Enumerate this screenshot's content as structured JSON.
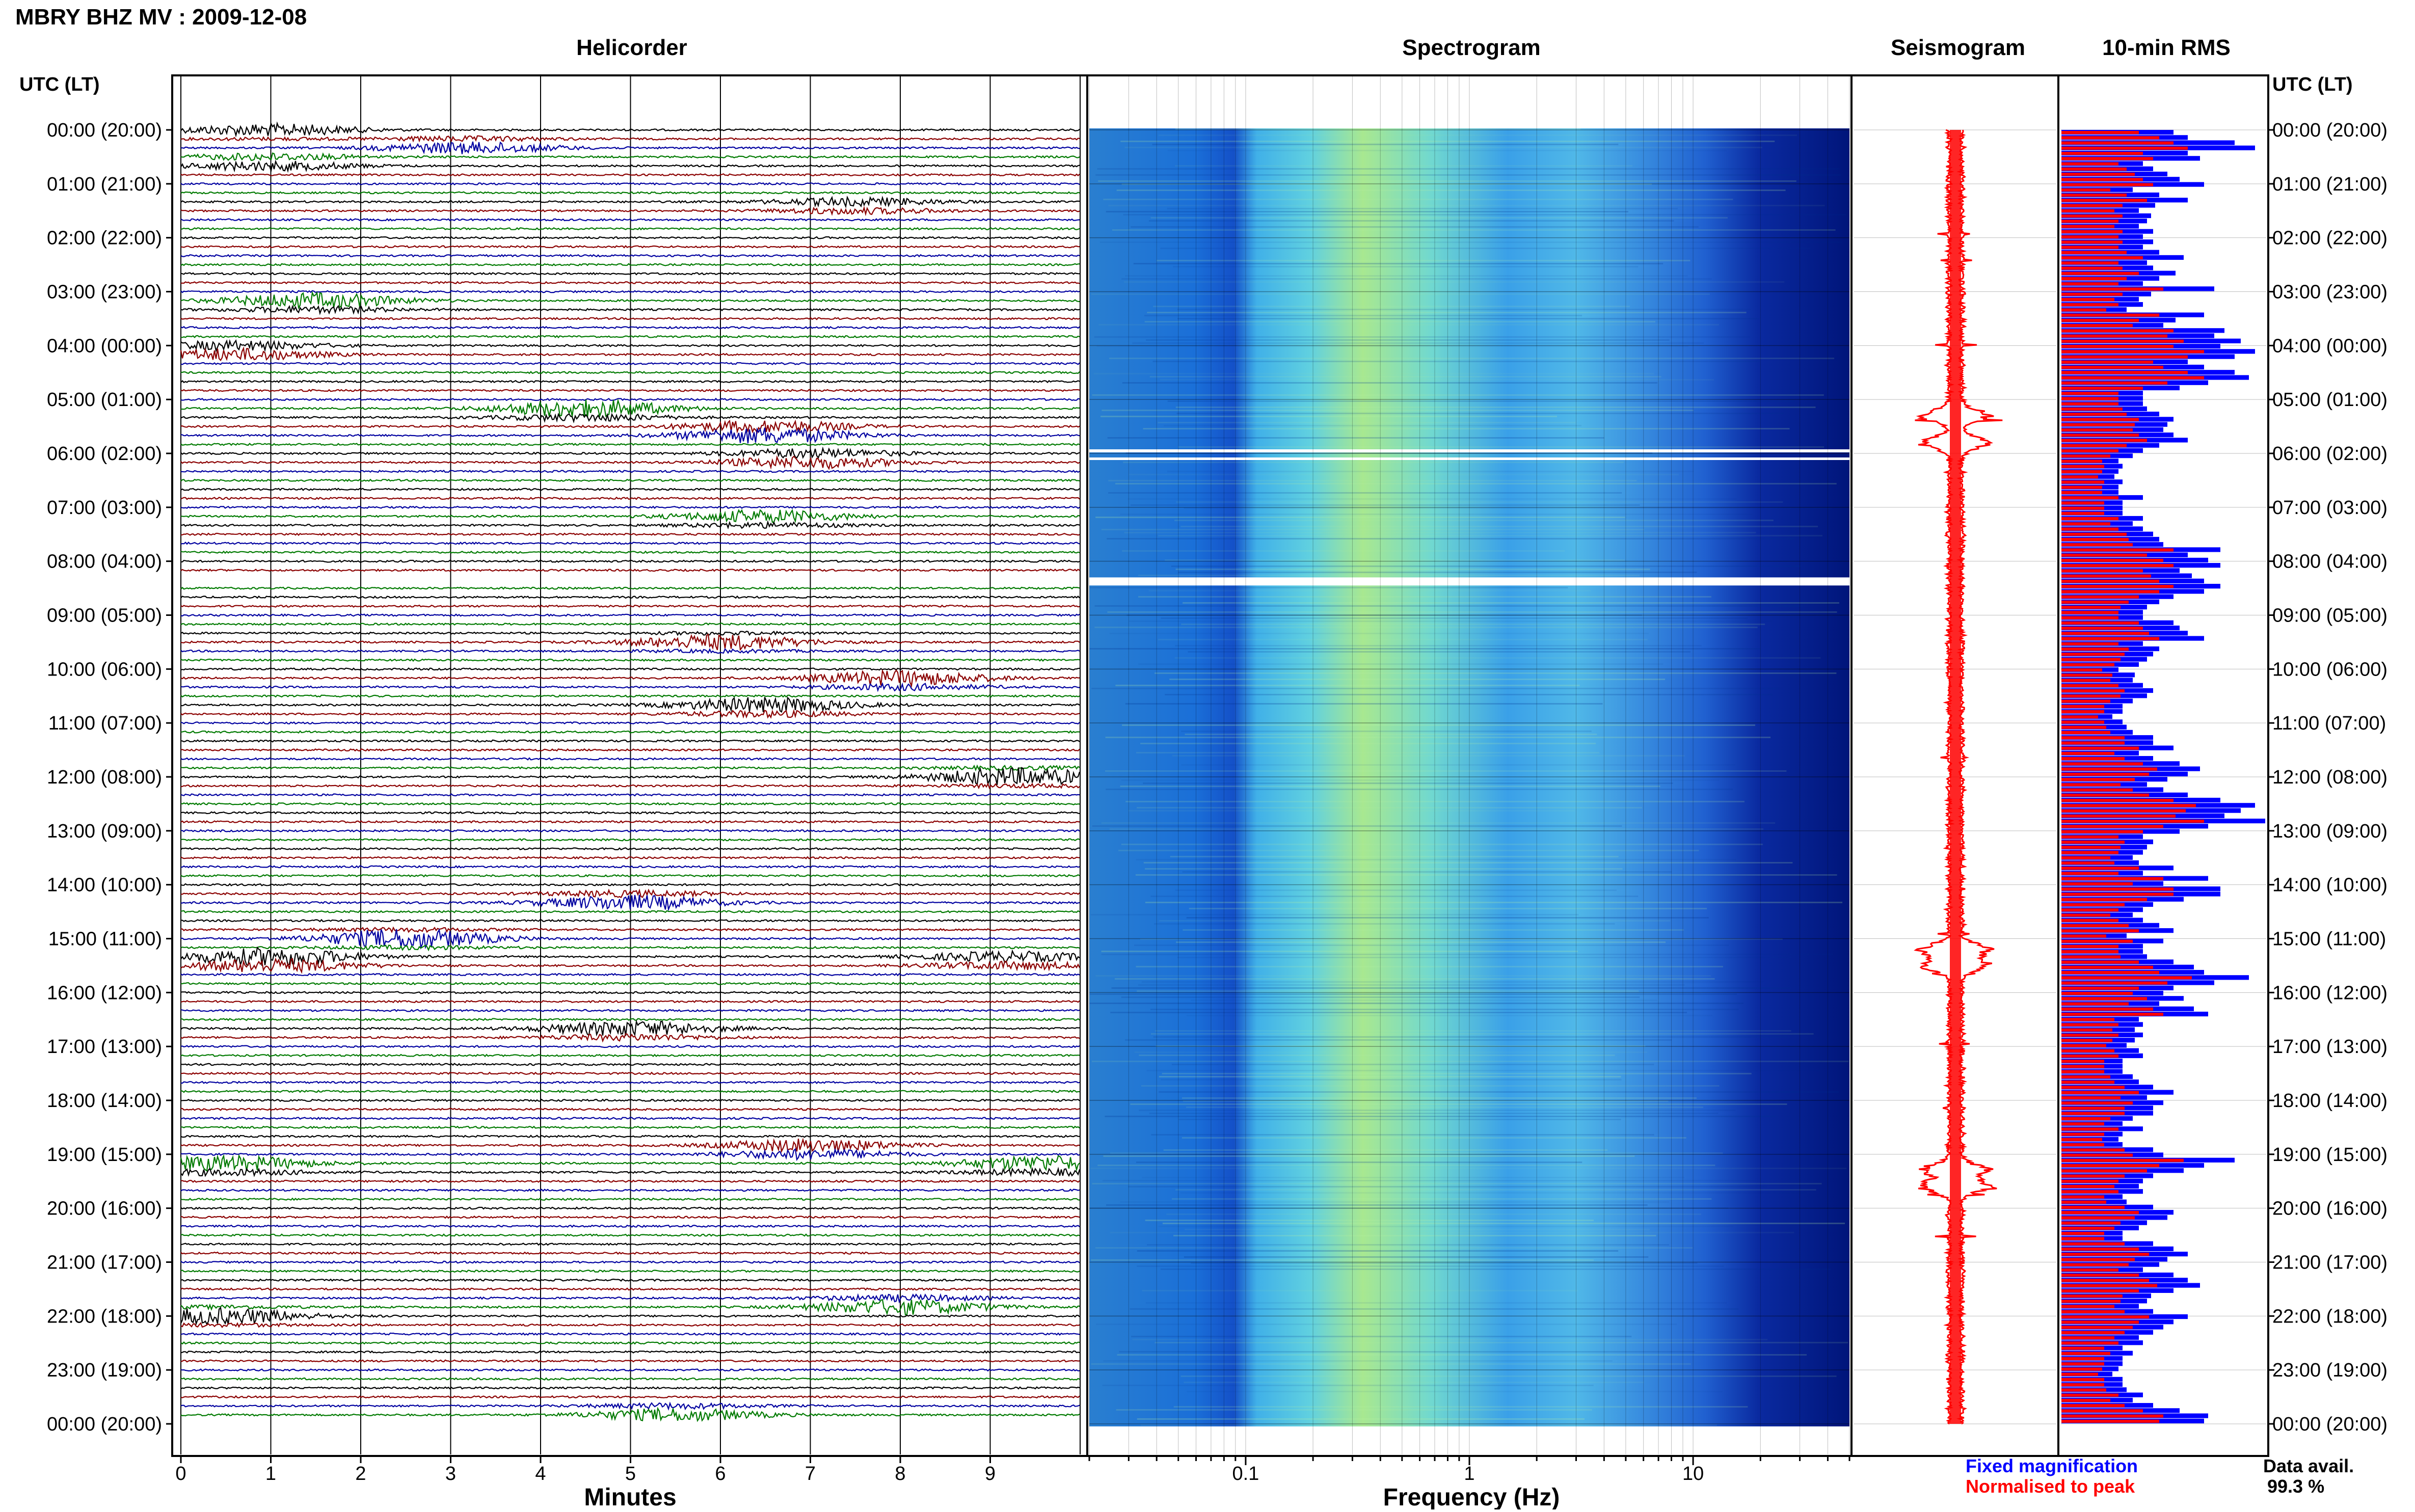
{
  "header": {
    "station_title": "MBRY BHZ MV : 2009-12-08"
  },
  "panels": {
    "helicorder_title": "Helicorder",
    "spectrogram_title": "Spectrogram",
    "seismogram_title": "Seismogram",
    "rms_title": "10-min RMS"
  },
  "time_axis": {
    "left_label": "UTC (LT)",
    "right_label": "UTC (LT)",
    "ticks": [
      "00:00 (20:00)",
      "01:00 (21:00)",
      "02:00 (22:00)",
      "03:00 (23:00)",
      "04:00 (00:00)",
      "05:00 (01:00)",
      "06:00 (02:00)",
      "07:00 (03:00)",
      "08:00 (04:00)",
      "09:00 (05:00)",
      "10:00 (06:00)",
      "11:00 (07:00)",
      "12:00 (08:00)",
      "13:00 (09:00)",
      "14:00 (10:00)",
      "15:00 (11:00)",
      "16:00 (12:00)",
      "17:00 (13:00)",
      "18:00 (14:00)",
      "19:00 (15:00)",
      "20:00 (16:00)",
      "21:00 (17:00)",
      "22:00 (18:00)",
      "23:00 (19:00)",
      "00:00 (20:00)"
    ]
  },
  "x_axes": {
    "helicorder_label": "Minutes",
    "helicorder_ticks": [
      "0",
      "1",
      "2",
      "3",
      "4",
      "5",
      "6",
      "7",
      "8",
      "9"
    ],
    "spectrogram_label": "Frequency (Hz)",
    "spectrogram_ticks": [
      "0.1",
      "1",
      "10"
    ]
  },
  "legend": {
    "fixed": "Fixed magnification",
    "normalised": "Normalised to peak",
    "avail_label": "Data avail.",
    "avail_value": "99.3 %"
  },
  "colors": {
    "helicorder_traces": [
      "#000000",
      "#8b0000",
      "#0000a0",
      "#007a00"
    ],
    "rms_fixed": "#0000ff",
    "rms_normalised": "#ff0000",
    "seismogram": "#ff0000"
  },
  "chart_data": [
    {
      "type": "line",
      "name": "helicorder",
      "xlabel": "Minutes",
      "xlim": [
        0,
        10
      ],
      "rows_per_hour": 6,
      "hours": 24,
      "events": [
        {
          "hour": 0.0,
          "minute": 1.0,
          "size": 0.8
        },
        {
          "hour": 0.3,
          "minute": 3.2,
          "size": 0.9
        },
        {
          "hour": 0.6,
          "minute": 1.0,
          "size": 0.9
        },
        {
          "hour": 1.4,
          "minute": 7.5,
          "size": 0.8
        },
        {
          "hour": 3.2,
          "minute": 1.5,
          "size": 1.2
        },
        {
          "hour": 4.1,
          "minute": 0.6,
          "size": 1.2
        },
        {
          "hour": 5.2,
          "minute": 4.5,
          "size": 1.4
        },
        {
          "hour": 5.6,
          "minute": 6.5,
          "size": 1.6
        },
        {
          "hour": 6.1,
          "minute": 7.0,
          "size": 1.2
        },
        {
          "hour": 7.2,
          "minute": 6.5,
          "size": 1.0
        },
        {
          "hour": 9.5,
          "minute": 6.0,
          "size": 1.0
        },
        {
          "hour": 10.2,
          "minute": 8.0,
          "size": 1.2
        },
        {
          "hour": 10.7,
          "minute": 6.5,
          "size": 1.2
        },
        {
          "hour": 12.0,
          "minute": 9.3,
          "size": 1.2
        },
        {
          "hour": 14.3,
          "minute": 5.0,
          "size": 1.2
        },
        {
          "hour": 15.0,
          "minute": 2.5,
          "size": 1.3
        },
        {
          "hour": 15.4,
          "minute": 1.0,
          "size": 1.8
        },
        {
          "hour": 15.4,
          "minute": 9.2,
          "size": 1.0
        },
        {
          "hour": 16.7,
          "minute": 5.0,
          "size": 1.2
        },
        {
          "hour": 18.9,
          "minute": 7.0,
          "size": 1.3
        },
        {
          "hour": 19.2,
          "minute": 0.5,
          "size": 1.2
        },
        {
          "hour": 19.2,
          "minute": 9.6,
          "size": 1.2
        },
        {
          "hour": 21.8,
          "minute": 8.0,
          "size": 1.2
        },
        {
          "hour": 22.0,
          "minute": 0.4,
          "size": 1.1
        },
        {
          "hour": 23.8,
          "minute": 5.5,
          "size": 1.0
        }
      ],
      "gap": {
        "hour_start": 8.25,
        "hour_end": 8.4
      }
    },
    {
      "type": "heatmap",
      "name": "spectrogram",
      "xlabel": "Frequency (Hz)",
      "xscale": "log",
      "xlim": [
        0.02,
        50
      ],
      "dominant_band_hz": [
        0.15,
        0.5
      ],
      "gap": {
        "hour_start": 8.3,
        "hour_end": 8.45
      }
    },
    {
      "type": "line",
      "name": "seismogram",
      "peaks_hours": [
        5.3,
        5.8,
        15.2,
        15.5,
        19.3,
        19.6
      ]
    },
    {
      "type": "bar",
      "name": "10-min RMS",
      "series": [
        {
          "name": "Fixed magnification",
          "values": [
            0.55,
            0.62,
            0.85,
            0.95,
            0.62,
            0.68,
            0.4,
            0.45,
            0.52,
            0.58,
            0.7,
            0.35,
            0.48,
            0.62,
            0.46,
            0.38,
            0.44,
            0.42,
            0.38,
            0.45,
            0.4,
            0.45,
            0.4,
            0.48,
            0.6,
            0.42,
            0.45,
            0.56,
            0.48,
            0.4,
            0.75,
            0.44,
            0.38,
            0.4,
            0.32,
            0.7,
            0.56,
            0.5,
            0.8,
            0.75,
            0.88,
            0.78,
            0.95,
            0.85,
            0.62,
            0.7,
            0.85,
            0.92,
            0.72,
            0.58,
            0.4,
            0.4,
            0.4,
            0.42,
            0.48,
            0.55,
            0.52,
            0.5,
            0.55,
            0.62,
            0.48,
            0.4,
            0.35,
            0.28,
            0.3,
            0.28,
            0.26,
            0.3,
            0.28,
            0.28,
            0.4,
            0.3,
            0.3,
            0.3,
            0.4,
            0.35,
            0.4,
            0.45,
            0.48,
            0.5,
            0.78,
            0.62,
            0.72,
            0.78,
            0.58,
            0.64,
            0.7,
            0.78,
            0.7,
            0.55,
            0.48,
            0.42,
            0.4,
            0.4,
            0.55,
            0.58,
            0.62,
            0.7,
            0.4,
            0.48,
            0.45,
            0.42,
            0.38,
            0.28,
            0.36,
            0.35,
            0.4,
            0.45,
            0.42,
            0.35,
            0.3,
            0.3,
            0.25,
            0.3,
            0.32,
            0.35,
            0.45,
            0.45,
            0.55,
            0.38,
            0.45,
            0.58,
            0.68,
            0.62,
            0.52,
            0.42,
            0.5,
            0.62,
            0.78,
            0.95,
            0.88,
            0.8,
            1.0,
            0.72,
            0.58,
            0.4,
            0.45,
            0.42,
            0.4,
            0.35,
            0.38,
            0.55,
            0.4,
            0.72,
            0.5,
            0.78,
            0.78,
            0.6,
            0.45,
            0.4,
            0.35,
            0.4,
            0.48,
            0.55,
            0.32,
            0.5,
            0.4,
            0.4,
            0.42,
            0.55,
            0.65,
            0.7,
            0.92,
            0.75,
            0.55,
            0.5,
            0.6,
            0.48,
            0.65,
            0.72,
            0.38,
            0.4,
            0.36,
            0.4,
            0.36,
            0.32,
            0.38,
            0.4,
            0.3,
            0.3,
            0.3,
            0.35,
            0.38,
            0.45,
            0.55,
            0.42,
            0.5,
            0.45,
            0.45,
            0.35,
            0.3,
            0.4,
            0.3,
            0.28,
            0.3,
            0.45,
            0.5,
            0.85,
            0.7,
            0.6,
            0.45,
            0.4,
            0.38,
            0.4,
            0.3,
            0.32,
            0.45,
            0.55,
            0.52,
            0.42,
            0.38,
            0.3,
            0.3,
            0.45,
            0.55,
            0.62,
            0.52,
            0.48,
            0.4,
            0.55,
            0.62,
            0.68,
            0.55,
            0.44,
            0.42,
            0.38,
            0.45,
            0.62,
            0.55,
            0.5,
            0.45,
            0.38,
            0.4,
            0.3,
            0.35,
            0.3,
            0.3,
            0.28,
            0.25,
            0.3,
            0.3,
            0.32,
            0.4,
            0.35,
            0.45,
            0.58,
            0.72,
            0.7
          ]
        },
        {
          "name": "Normalised to peak",
          "values": [
            0.38,
            0.48,
            0.55,
            0.62,
            0.4,
            0.45,
            0.28,
            0.32,
            0.36,
            0.4,
            0.45,
            0.24,
            0.32,
            0.42,
            0.3,
            0.26,
            0.3,
            0.28,
            0.26,
            0.3,
            0.28,
            0.3,
            0.28,
            0.32,
            0.4,
            0.28,
            0.3,
            0.38,
            0.32,
            0.28,
            0.5,
            0.3,
            0.26,
            0.28,
            0.22,
            0.48,
            0.38,
            0.35,
            0.55,
            0.52,
            0.6,
            0.55,
            0.7,
            0.62,
            0.45,
            0.5,
            0.62,
            0.7,
            0.52,
            0.4,
            0.28,
            0.28,
            0.28,
            0.3,
            0.32,
            0.38,
            0.36,
            0.35,
            0.38,
            0.42,
            0.32,
            0.28,
            0.24,
            0.2,
            0.21,
            0.2,
            0.18,
            0.21,
            0.2,
            0.2,
            0.28,
            0.21,
            0.21,
            0.21,
            0.28,
            0.24,
            0.28,
            0.32,
            0.33,
            0.35,
            0.55,
            0.42,
            0.5,
            0.55,
            0.4,
            0.44,
            0.48,
            0.55,
            0.48,
            0.38,
            0.33,
            0.29,
            0.28,
            0.28,
            0.38,
            0.4,
            0.43,
            0.48,
            0.28,
            0.33,
            0.31,
            0.29,
            0.26,
            0.2,
            0.25,
            0.24,
            0.28,
            0.31,
            0.29,
            0.24,
            0.21,
            0.21,
            0.18,
            0.21,
            0.22,
            0.24,
            0.31,
            0.31,
            0.38,
            0.26,
            0.31,
            0.4,
            0.47,
            0.43,
            0.36,
            0.29,
            0.35,
            0.43,
            0.55,
            0.66,
            0.61,
            0.56,
            0.7,
            0.5,
            0.4,
            0.28,
            0.31,
            0.29,
            0.28,
            0.24,
            0.26,
            0.38,
            0.28,
            0.5,
            0.35,
            0.55,
            0.55,
            0.42,
            0.31,
            0.28,
            0.24,
            0.28,
            0.33,
            0.38,
            0.22,
            0.35,
            0.28,
            0.28,
            0.29,
            0.38,
            0.45,
            0.48,
            0.64,
            0.52,
            0.38,
            0.35,
            0.42,
            0.33,
            0.45,
            0.5,
            0.26,
            0.28,
            0.25,
            0.28,
            0.25,
            0.22,
            0.26,
            0.28,
            0.21,
            0.21,
            0.21,
            0.24,
            0.26,
            0.31,
            0.38,
            0.29,
            0.35,
            0.31,
            0.31,
            0.24,
            0.21,
            0.28,
            0.21,
            0.2,
            0.21,
            0.31,
            0.35,
            0.6,
            0.48,
            0.42,
            0.31,
            0.28,
            0.26,
            0.28,
            0.21,
            0.22,
            0.31,
            0.38,
            0.36,
            0.29,
            0.26,
            0.21,
            0.21,
            0.31,
            0.38,
            0.43,
            0.36,
            0.33,
            0.28,
            0.38,
            0.43,
            0.47,
            0.38,
            0.3,
            0.29,
            0.26,
            0.31,
            0.43,
            0.38,
            0.35,
            0.31,
            0.26,
            0.28,
            0.21,
            0.24,
            0.21,
            0.21,
            0.2,
            0.18,
            0.21,
            0.21,
            0.22,
            0.28,
            0.24,
            0.31,
            0.4,
            0.5,
            0.48
          ]
        }
      ]
    }
  ]
}
